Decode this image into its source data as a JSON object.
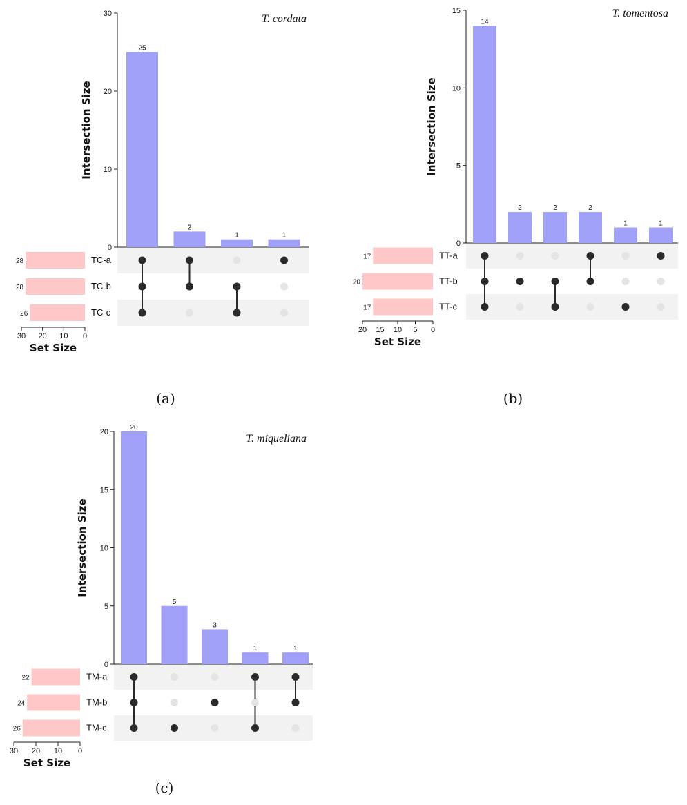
{
  "colors": {
    "bar": "#a0a0f8",
    "setbar": "#ffc8c8",
    "dot_on": "#2a2a2a",
    "dot_off": "#e4e4e4",
    "band": "#f2f2f2"
  },
  "chart_data": [
    {
      "type": "bar",
      "panel": "(a)",
      "title": "T. cordata",
      "ylabel": "Intersection Size",
      "xlabel": "Set Size",
      "ylim": [
        0,
        30
      ],
      "yticks": [
        0,
        10,
        20,
        30
      ],
      "values": [
        25,
        2,
        1,
        1
      ],
      "sets": [
        {
          "name": "TC-a",
          "size": 28
        },
        {
          "name": "TC-b",
          "size": 28
        },
        {
          "name": "TC-c",
          "size": 26
        }
      ],
      "membership": [
        [
          1,
          1,
          1
        ],
        [
          1,
          1,
          0
        ],
        [
          0,
          1,
          1
        ],
        [
          1,
          0,
          0
        ]
      ],
      "set_size_ticks": [
        30,
        20,
        10,
        0
      ],
      "set_size_max": 30
    },
    {
      "type": "bar",
      "panel": "(b)",
      "title": "T. tomentosa",
      "ylabel": "Intersection Size",
      "xlabel": "Set Size",
      "ylim": [
        0,
        15
      ],
      "yticks": [
        0,
        5,
        10,
        15
      ],
      "values": [
        14,
        2,
        2,
        2,
        1,
        1
      ],
      "sets": [
        {
          "name": "TT-a",
          "size": 17
        },
        {
          "name": "TT-b",
          "size": 20
        },
        {
          "name": "TT-c",
          "size": 17
        }
      ],
      "membership": [
        [
          1,
          1,
          1
        ],
        [
          0,
          1,
          0
        ],
        [
          0,
          1,
          1
        ],
        [
          1,
          1,
          0
        ],
        [
          0,
          0,
          1
        ],
        [
          1,
          0,
          0
        ]
      ],
      "set_size_ticks": [
        20,
        15,
        10,
        5,
        0
      ],
      "set_size_max": 20
    },
    {
      "type": "bar",
      "panel": "(c)",
      "title": "T. miqueliana",
      "ylabel": "Intersection Size",
      "xlabel": "Set Size",
      "ylim": [
        0,
        20
      ],
      "yticks": [
        0,
        5,
        10,
        15,
        20
      ],
      "values": [
        20,
        5,
        3,
        1,
        1
      ],
      "sets": [
        {
          "name": "TM-a",
          "size": 22
        },
        {
          "name": "TM-b",
          "size": 24
        },
        {
          "name": "TM-c",
          "size": 26
        }
      ],
      "membership": [
        [
          1,
          1,
          1
        ],
        [
          0,
          0,
          1
        ],
        [
          0,
          1,
          0
        ],
        [
          1,
          0,
          1
        ],
        [
          1,
          1,
          0
        ]
      ],
      "set_size_ticks": [
        30,
        20,
        10,
        0
      ],
      "set_size_max": 30
    }
  ]
}
